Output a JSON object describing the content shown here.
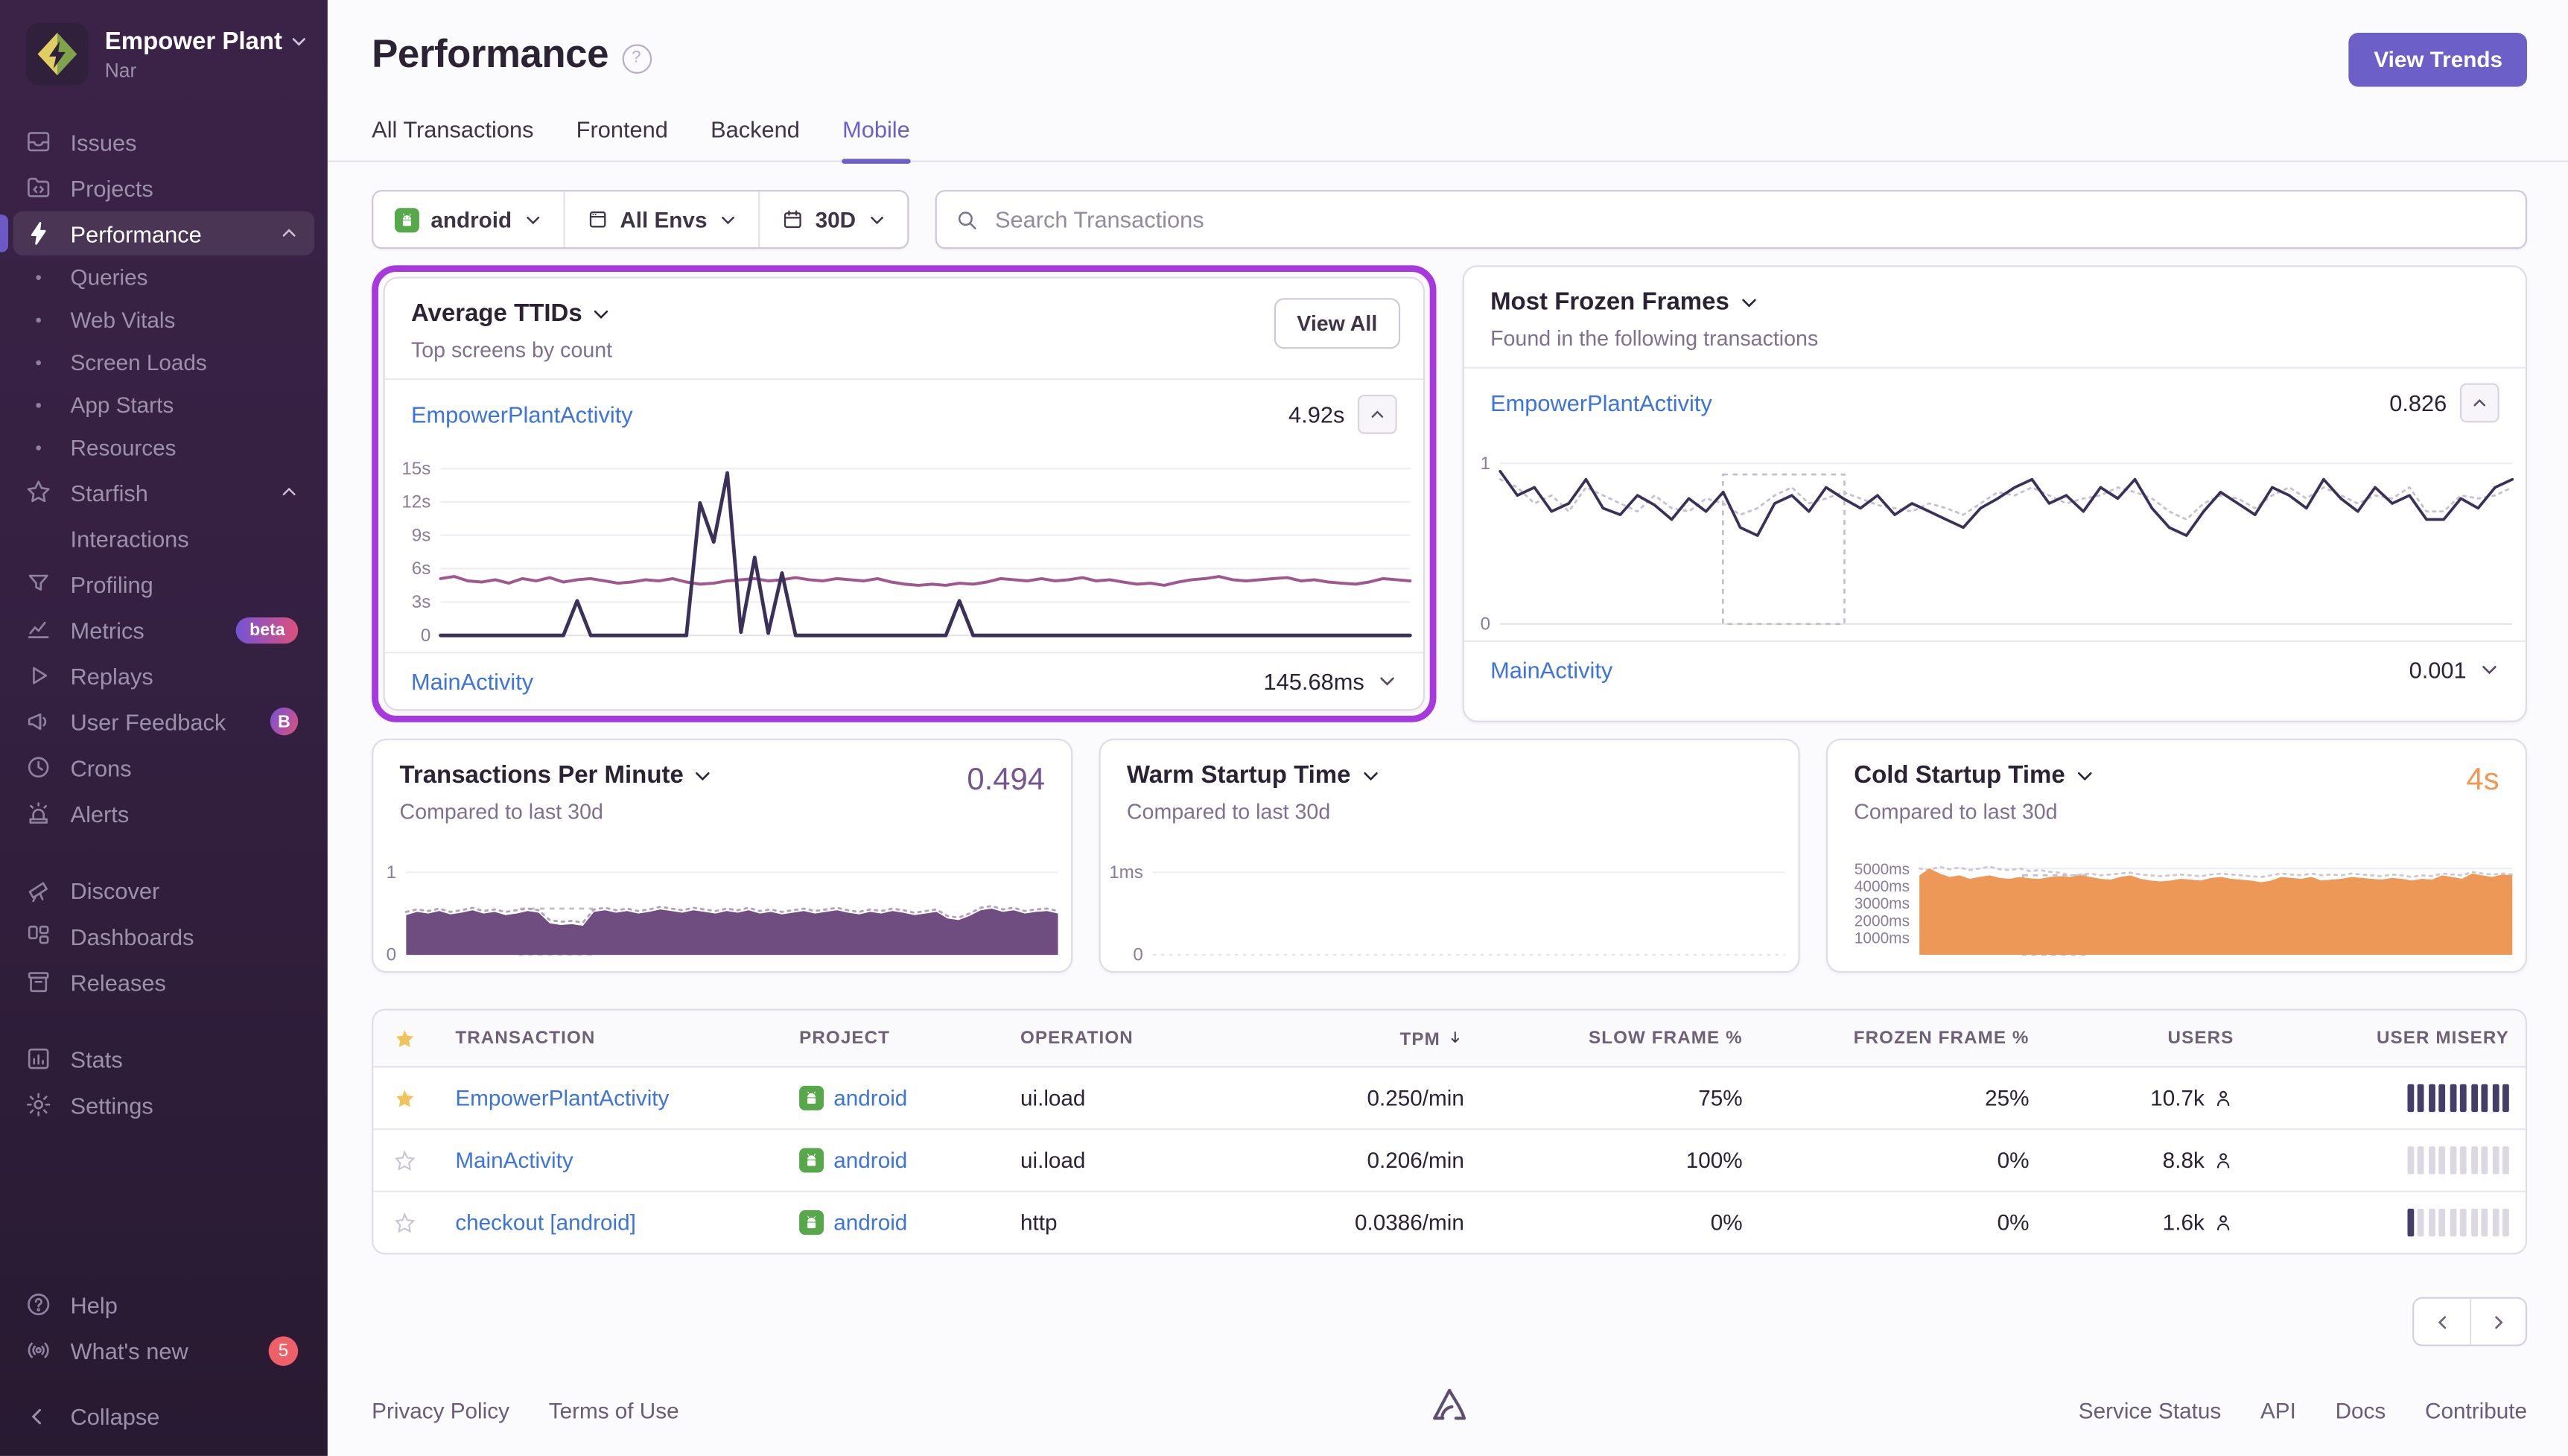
{
  "sidebar": {
    "org": {
      "name": "Empower Plant",
      "subtitle": "Nar"
    },
    "collapse_label": "Collapse",
    "items": [
      {
        "id": "issues",
        "label": "Issues",
        "icon": "issues"
      },
      {
        "id": "projects",
        "label": "Projects",
        "icon": "projects"
      },
      {
        "id": "performance",
        "label": "Performance",
        "icon": "performance",
        "active": true,
        "chevron": "up"
      },
      {
        "id": "queries",
        "label": "Queries",
        "type": "sub"
      },
      {
        "id": "web-vitals",
        "label": "Web Vitals",
        "type": "sub"
      },
      {
        "id": "screen-loads",
        "label": "Screen Loads",
        "type": "sub"
      },
      {
        "id": "app-starts",
        "label": "App Starts",
        "type": "sub"
      },
      {
        "id": "resources",
        "label": "Resources",
        "type": "sub"
      },
      {
        "id": "starfish",
        "label": "Starfish",
        "icon": "star",
        "chevron": "up"
      },
      {
        "id": "interactions",
        "label": "Interactions",
        "type": "indent"
      },
      {
        "id": "profiling",
        "label": "Profiling",
        "icon": "profiling"
      },
      {
        "id": "metrics",
        "label": "Metrics",
        "icon": "metrics",
        "badge": {
          "text": "beta",
          "style": "pill-gradient"
        }
      },
      {
        "id": "replays",
        "label": "Replays",
        "icon": "replays"
      },
      {
        "id": "user-feedback",
        "label": "User Feedback",
        "icon": "feedback",
        "badge": {
          "text": "B",
          "style": "circle-gradient"
        }
      },
      {
        "id": "crons",
        "label": "Crons",
        "icon": "crons"
      },
      {
        "id": "alerts",
        "label": "Alerts",
        "icon": "alerts"
      },
      {
        "id": "discover",
        "label": "Discover",
        "icon": "discover",
        "section_gap": true
      },
      {
        "id": "dashboards",
        "label": "Dashboards",
        "icon": "dashboards"
      },
      {
        "id": "releases",
        "label": "Releases",
        "icon": "releases"
      },
      {
        "id": "stats",
        "label": "Stats",
        "icon": "stats",
        "section_gap": true
      },
      {
        "id": "settings",
        "label": "Settings",
        "icon": "settings"
      }
    ],
    "bottom_items": [
      {
        "id": "help",
        "label": "Help",
        "icon": "help"
      },
      {
        "id": "whats-new",
        "label": "What's new",
        "icon": "broadcast",
        "badge": {
          "text": "5",
          "style": "circle-red"
        }
      }
    ]
  },
  "header": {
    "title": "Performance",
    "view_trends": "View Trends",
    "tabs": [
      {
        "label": "All Transactions"
      },
      {
        "label": "Frontend"
      },
      {
        "label": "Backend"
      },
      {
        "label": "Mobile",
        "active": true
      }
    ]
  },
  "filters": {
    "project": "android",
    "env": "All Envs",
    "period": "30D",
    "search_placeholder": "Search Transactions"
  },
  "panels": {
    "avg_ttids": {
      "title": "Average TTIDs",
      "subtitle": "Top screens by count",
      "view_all": "View All",
      "rows": [
        {
          "name": "EmpowerPlantActivity",
          "value": "4.92s"
        },
        {
          "name": "MainActivity",
          "value": "145.68ms"
        }
      ]
    },
    "frozen_frames": {
      "title": "Most Frozen Frames",
      "subtitle": "Found in the following transactions",
      "rows": [
        {
          "name": "EmpowerPlantActivity",
          "value": "0.826"
        },
        {
          "name": "MainActivity",
          "value": "0.001"
        }
      ]
    },
    "tpm": {
      "title": "Transactions Per Minute",
      "subtitle": "Compared to last 30d",
      "value": "0.494"
    },
    "warm": {
      "title": "Warm Startup Time",
      "subtitle": "Compared to last 30d"
    },
    "cold": {
      "title": "Cold Startup Time",
      "subtitle": "Compared to last 30d",
      "value": "4s"
    }
  },
  "chart_data": {
    "ttids": {
      "type": "line",
      "ymax": 15.6,
      "label_width": 32,
      "tick_font": 11,
      "ticks": [
        {
          "v": 15,
          "l": "15s"
        },
        {
          "v": 12,
          "l": "12s"
        },
        {
          "v": 9,
          "l": "9s"
        },
        {
          "v": 6,
          "l": "6s"
        },
        {
          "v": 3,
          "l": "3s"
        },
        {
          "v": 0,
          "l": "0"
        }
      ],
      "series": [
        {
          "name": "EmpowerPlantActivity",
          "type": "line",
          "color": "#A0568E",
          "width": 1.8,
          "values": [
            5.1,
            5.3,
            4.9,
            4.8,
            5.0,
            4.7,
            5.1,
            4.9,
            5.2,
            4.8,
            5.0,
            5.1,
            4.9,
            4.7,
            4.8,
            5.0,
            4.9,
            5.1,
            4.8,
            4.6,
            4.7,
            4.9,
            5.0,
            5.1,
            4.9,
            5.0,
            5.2,
            5.0,
            4.9,
            5.1,
            5.0,
            4.9,
            5.1,
            4.8,
            4.6,
            4.5,
            4.6,
            4.5,
            4.7,
            4.6,
            4.8,
            5.1,
            5.0,
            4.9,
            5.1,
            4.9,
            5.0,
            5.2,
            4.9,
            5.0,
            4.8,
            4.6,
            4.7,
            4.5,
            4.8,
            5.0,
            5.1,
            5.3,
            5.0,
            4.9,
            5.0,
            5.1,
            5.2,
            4.9,
            5.0,
            4.8,
            4.7,
            4.6,
            4.8,
            5.1,
            5.0,
            4.9
          ]
        },
        {
          "name": "MainActivity",
          "type": "line",
          "color": "#3B3158",
          "width": 2.2,
          "values": [
            0,
            0,
            0,
            0,
            0,
            0,
            0,
            0,
            0,
            0,
            3.1,
            0,
            0,
            0,
            0,
            0,
            0,
            0,
            0,
            11.9,
            8.4,
            14.6,
            0.3,
            7.0,
            0.2,
            5.6,
            0,
            0,
            0,
            0,
            0,
            0,
            0,
            0,
            0,
            0,
            0,
            0,
            3.1,
            0,
            0,
            0,
            0,
            0,
            0,
            0,
            0,
            0,
            0,
            0,
            0,
            0,
            0,
            0,
            0,
            0,
            0,
            0,
            0,
            0,
            0,
            0,
            0,
            0,
            0,
            0,
            0,
            0,
            0,
            0,
            0,
            0
          ]
        }
      ]
    },
    "frozen_frames": {
      "type": "line",
      "ymax": 1.08,
      "label_width": 20,
      "tick_font": 11,
      "ticks": [
        {
          "v": 1,
          "l": "1"
        },
        {
          "v": 0,
          "l": "0"
        }
      ],
      "marker": {
        "x0": 0.22,
        "x1": 0.34,
        "top": 0.93
      },
      "series": [
        {
          "name": "previous period",
          "type": "dotted",
          "color": "#c6c0cf",
          "width": 1.3,
          "values": [
            0.9,
            0.85,
            0.75,
            0.8,
            0.7,
            0.85,
            0.8,
            0.75,
            0.7,
            0.8,
            0.72,
            0.7,
            0.78,
            0.75,
            0.68,
            0.72,
            0.8,
            0.85,
            0.75,
            0.78,
            0.82,
            0.78,
            0.74,
            0.72,
            0.7,
            0.75,
            0.72,
            0.68,
            0.75,
            0.82,
            0.8,
            0.85,
            0.8,
            0.75,
            0.78,
            0.8,
            0.85,
            0.82,
            0.78,
            0.7,
            0.65,
            0.75,
            0.8,
            0.78,
            0.72,
            0.8,
            0.85,
            0.78,
            0.85,
            0.8,
            0.75,
            0.8,
            0.78,
            0.85,
            0.7,
            0.7,
            0.8,
            0.78,
            0.8,
            0.85
          ]
        },
        {
          "name": "EmpowerPlantActivity",
          "type": "line",
          "color": "#3B3158",
          "width": 1.7,
          "values": [
            0.95,
            0.8,
            0.85,
            0.7,
            0.75,
            0.9,
            0.72,
            0.68,
            0.8,
            0.74,
            0.65,
            0.78,
            0.7,
            0.82,
            0.6,
            0.55,
            0.75,
            0.8,
            0.7,
            0.85,
            0.78,
            0.72,
            0.8,
            0.68,
            0.75,
            0.7,
            0.65,
            0.6,
            0.72,
            0.78,
            0.85,
            0.9,
            0.75,
            0.8,
            0.7,
            0.85,
            0.78,
            0.9,
            0.72,
            0.6,
            0.55,
            0.7,
            0.82,
            0.75,
            0.68,
            0.85,
            0.8,
            0.72,
            0.9,
            0.78,
            0.7,
            0.85,
            0.75,
            0.8,
            0.65,
            0.65,
            0.78,
            0.72,
            0.85,
            0.9
          ]
        }
      ]
    },
    "tpm": {
      "type": "area",
      "ymax": 1.15,
      "label_width": 18,
      "tick_font": 11,
      "ticks": [
        {
          "v": 1,
          "l": "1"
        },
        {
          "v": 0,
          "l": "0"
        }
      ],
      "marker": {
        "x0": 0.175,
        "x1": 0.285,
        "top": 0.56
      },
      "series": [
        {
          "name": "previous period",
          "type": "dotted",
          "color": "#b3a1c0",
          "width": 1.3,
          "values": [
            0.52,
            0.55,
            0.53,
            0.56,
            0.52,
            0.54,
            0.57,
            0.53,
            0.55,
            0.52,
            0.54,
            0.56,
            0.54,
            0.42,
            0.4,
            0.41,
            0.39,
            0.55,
            0.57,
            0.54,
            0.56,
            0.53,
            0.55,
            0.58,
            0.56,
            0.54,
            0.57,
            0.55,
            0.53,
            0.56,
            0.54,
            0.57,
            0.53,
            0.55,
            0.52,
            0.54,
            0.56,
            0.53,
            0.55,
            0.57,
            0.54,
            0.52,
            0.55,
            0.53,
            0.56,
            0.54,
            0.51,
            0.53,
            0.55,
            0.47,
            0.45,
            0.5,
            0.57,
            0.59,
            0.55,
            0.57,
            0.53,
            0.55,
            0.56,
            0.53
          ]
        },
        {
          "name": "Transactions Per Minute",
          "type": "area",
          "color": "#6F4D80",
          "values": [
            0.48,
            0.52,
            0.5,
            0.53,
            0.49,
            0.51,
            0.54,
            0.5,
            0.52,
            0.48,
            0.5,
            0.53,
            0.51,
            0.38,
            0.36,
            0.37,
            0.35,
            0.52,
            0.54,
            0.51,
            0.53,
            0.5,
            0.52,
            0.55,
            0.53,
            0.51,
            0.54,
            0.52,
            0.5,
            0.53,
            0.51,
            0.54,
            0.5,
            0.52,
            0.49,
            0.51,
            0.53,
            0.5,
            0.52,
            0.54,
            0.51,
            0.49,
            0.52,
            0.5,
            0.53,
            0.51,
            0.48,
            0.5,
            0.52,
            0.44,
            0.42,
            0.47,
            0.54,
            0.56,
            0.52,
            0.54,
            0.5,
            0.52,
            0.53,
            0.5
          ]
        }
      ]
    },
    "warm": {
      "type": "line",
      "ymax": 1.15,
      "label_width": 30,
      "tick_font": 11,
      "zero_dashed": true,
      "ticks": [
        {
          "v": 1,
          "l": "1ms"
        },
        {
          "v": 0,
          "l": "0"
        }
      ],
      "series": []
    },
    "cold": {
      "type": "area",
      "ymax": 5500,
      "label_width": 54,
      "tick_font": 9.5,
      "ticks": [
        {
          "v": 5000,
          "l": "5000ms"
        },
        {
          "v": 4000,
          "l": "4000ms"
        },
        {
          "v": 3000,
          "l": "3000ms"
        },
        {
          "v": 2000,
          "l": "2000ms"
        },
        {
          "v": 1000,
          "l": "1000ms"
        }
      ],
      "marker": {
        "x0": 0.175,
        "x1": 0.285,
        "top": 4600
      },
      "series": [
        {
          "name": "previous period",
          "type": "dotted",
          "color": "#cdc8d4",
          "width": 1.3,
          "values": [
            5000,
            4900,
            5100,
            4950,
            5050,
            4900,
            5000,
            5100,
            4950,
            4900,
            5000,
            4850,
            4900,
            4800,
            4750,
            4600,
            4650,
            4700,
            4600,
            4650,
            4700,
            4750,
            4650,
            4600,
            4550,
            4600,
            4650,
            4600,
            4550,
            4650,
            4700,
            4650,
            4600,
            4550,
            4500,
            4600,
            4700,
            4650,
            4600,
            4700,
            4600,
            4650,
            4600,
            4700,
            4650,
            4600,
            4550,
            4650,
            4600,
            4500,
            4600,
            4550,
            4700,
            4650,
            4600,
            4800,
            4700,
            4650,
            4700,
            4650
          ]
        },
        {
          "name": "Cold Startup Time",
          "type": "area",
          "color": "#ED9857",
          "values": [
            4600,
            5000,
            4700,
            4500,
            4600,
            4400,
            4500,
            4600,
            4450,
            4400,
            4500,
            4430,
            4400,
            4500,
            4550,
            4500,
            4600,
            4500,
            4400,
            4350,
            4500,
            4600,
            4400,
            4300,
            4250,
            4300,
            4400,
            4350,
            4300,
            4450,
            4500,
            4400,
            4350,
            4300,
            4200,
            4300,
            4500,
            4450,
            4400,
            4500,
            4300,
            4350,
            4400,
            4500,
            4450,
            4400,
            4350,
            4450,
            4400,
            4300,
            4400,
            4350,
            4600,
            4500,
            4400,
            4700,
            4600,
            4500,
            4650,
            4600
          ]
        }
      ]
    }
  },
  "table": {
    "columns": [
      "TRANSACTION",
      "PROJECT",
      "OPERATION",
      "TPM",
      "SLOW FRAME %",
      "FROZEN FRAME %",
      "USERS",
      "USER MISERY"
    ],
    "sort": {
      "column": "TPM",
      "direction": "desc"
    },
    "misery_total": 10,
    "rows": [
      {
        "starred": true,
        "transaction": "EmpowerPlantActivity",
        "project": "android",
        "operation": "ui.load",
        "tpm": "0.250/min",
        "slow": "75%",
        "frozen": "25%",
        "users": "10.7k",
        "misery_filled": 10
      },
      {
        "starred": false,
        "transaction": "MainActivity",
        "project": "android",
        "operation": "ui.load",
        "tpm": "0.206/min",
        "slow": "100%",
        "frozen": "0%",
        "users": "8.8k",
        "misery_filled": 0
      },
      {
        "starred": false,
        "transaction": "checkout [android]",
        "project": "android",
        "operation": "http",
        "tpm": "0.0386/min",
        "slow": "0%",
        "frozen": "0%",
        "users": "1.6k",
        "misery_filled": 1
      }
    ]
  },
  "pagination": {
    "prev_icon": "chevron-left",
    "next_icon": "chevron-right"
  },
  "footer": {
    "left": [
      "Privacy Policy",
      "Terms of Use"
    ],
    "right": [
      "Service Status",
      "API",
      "Docs",
      "Contribute"
    ]
  },
  "colors": {
    "accent": "#6C5FC7",
    "highlight_ring": "#A737DF",
    "link": "#3D74DB",
    "ttid_line": "#A0568E",
    "series_dark": "#3B3158",
    "tpm_fill": "#6F4D80",
    "cold_fill": "#ED9857",
    "android_green": "#57A84A"
  }
}
